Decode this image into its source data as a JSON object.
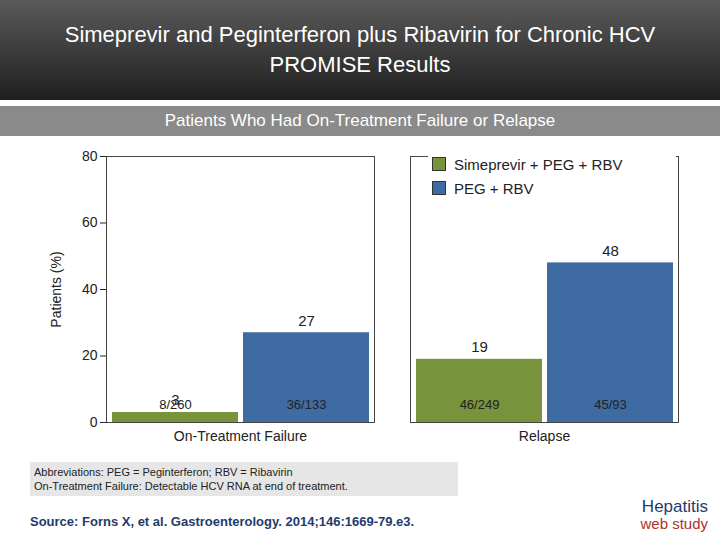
{
  "chart_data": {
    "type": "bar",
    "title": [
      "Simeprevir and Peginterferon plus Ribavirin for Chronic HCV",
      "PROMISE Results"
    ],
    "subtitle": "Patients Who Had On-Treatment Failure or Relapse",
    "y_label": "Patients (%)",
    "categories": [
      "On-Treatment Failure",
      "Relapse"
    ],
    "series": [
      {
        "name": "Simeprevir + PEG + RBV",
        "color": "#77933c",
        "values": [
          3,
          19
        ],
        "fractions": [
          "8/260",
          "46/249"
        ]
      },
      {
        "name": "PEG + RBV",
        "color": "#3f6ba3",
        "values": [
          27,
          48
        ],
        "fractions": [
          "36/133",
          "45/93"
        ]
      }
    ],
    "ylim": [
      0,
      80
    ],
    "yticks": [
      0,
      20,
      40,
      60,
      80
    ],
    "grid": false,
    "legend": "top-right",
    "data_labels": true,
    "footnotes": [
      "Abbreviations: PEG = Peginterferon; RBV = Ribavirin",
      "On-Treatment Failure: Detectable HCV RNA at end of treatment."
    ],
    "source": "Source: Forns X, et al.  Gastroenterology. 2014;146:1669-79.e3.",
    "logo": [
      "Hepatitis",
      "web study"
    ]
  }
}
